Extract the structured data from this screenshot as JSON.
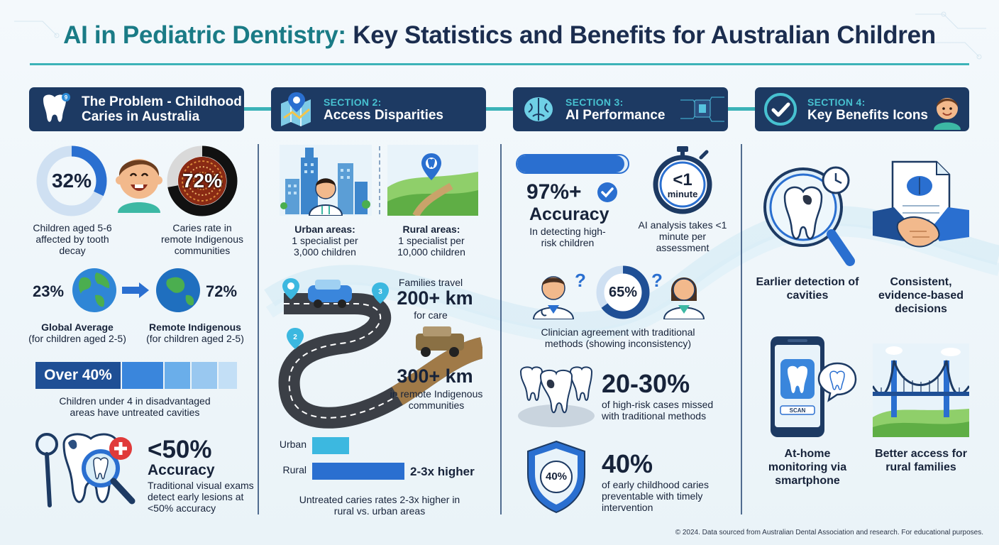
{
  "title": {
    "part1": "AI in Pediatric Dentistry:",
    "part2": "Key Statistics and Benefits for Australian Children"
  },
  "sections": {
    "s1": {
      "label": "",
      "title": "The Problem - Childhood Caries in Australia"
    },
    "s2": {
      "label": "SECTION 2:",
      "title": "Access Disparities"
    },
    "s3": {
      "label": "SECTION 3:",
      "title": "AI Performance"
    },
    "s4": {
      "label": "SECTION 4:",
      "title": "Key Benefits Icons"
    }
  },
  "problem": {
    "stat1": {
      "value": "32%",
      "percent": 32,
      "caption": "Children aged 5-6 affected by tooth decay"
    },
    "stat2": {
      "value": "72%",
      "percent": 72,
      "caption": "Caries rate in remote Indigenous communities"
    },
    "global": {
      "value": "23%",
      "label": "Global Average",
      "sub": "(for children aged 2-5)"
    },
    "indigenous": {
      "value": "72%",
      "label": "Remote Indigenous",
      "sub": "(for children aged 2-5)"
    },
    "untreated": {
      "value": "Over 40%",
      "caption": "Children under 4 in disadvantaged areas have untreated cavities"
    },
    "accuracy": {
      "value": "<50%",
      "label": "Accuracy",
      "caption": "Traditional visual exams detect early lesions at <50% accuracy"
    }
  },
  "access": {
    "urban": {
      "label": "Urban areas:",
      "detail": "1 specialist per 3,000 children"
    },
    "rural": {
      "label": "Rural areas:",
      "detail": "1 specialist per 10,000 children"
    },
    "travel_intro": "Families travel",
    "travel1": {
      "value": "200+ km",
      "caption": "for care"
    },
    "travel2": {
      "value": "300+ km",
      "caption": "in remote Indigenous communities"
    },
    "route_markers": [
      "2",
      "3"
    ],
    "chart_caption": "Untreated caries rates 2-3x higher in rural vs. urban areas"
  },
  "chart_data": {
    "type": "bar",
    "orientation": "horizontal",
    "categories": [
      "Urban",
      "Rural"
    ],
    "values": [
      1,
      2.5
    ],
    "value_labels": [
      "",
      "2-3x higher"
    ],
    "colors": [
      "#3cb8e0",
      "#2a6fd0"
    ]
  },
  "ai": {
    "accuracy": {
      "value": "97%+",
      "label": "Accuracy",
      "caption": "In detecting high-risk children"
    },
    "speed": {
      "value": "<1",
      "unit": "minute",
      "caption": "AI analysis takes <1 minute per assessment"
    },
    "agreement": {
      "value": "65%",
      "percent": 65,
      "caption": "Clinician agreement with traditional methods (showing inconsistency)"
    },
    "missed": {
      "value": "20-30%",
      "caption": "of high-risk cases missed with traditional methods"
    },
    "preventable": {
      "value": "40%",
      "shield": "40%",
      "caption": "of early childhood caries preventable with timely intervention"
    }
  },
  "benefits": {
    "b1": "Earlier detection of cavities",
    "b2": "Consistent, evidence-based decisions",
    "b3": "At-home monitoring via smartphone",
    "b4": "Better access for rural families",
    "scan_label": "SCAN"
  },
  "footer": "© 2024. Data sourced from Australian Dental Association and research. For educational purposes.",
  "colors": {
    "navy": "#1d3a63",
    "teal": "#3cb3b8",
    "blue": "#2a6fd0",
    "accent": "#47c1d0"
  }
}
